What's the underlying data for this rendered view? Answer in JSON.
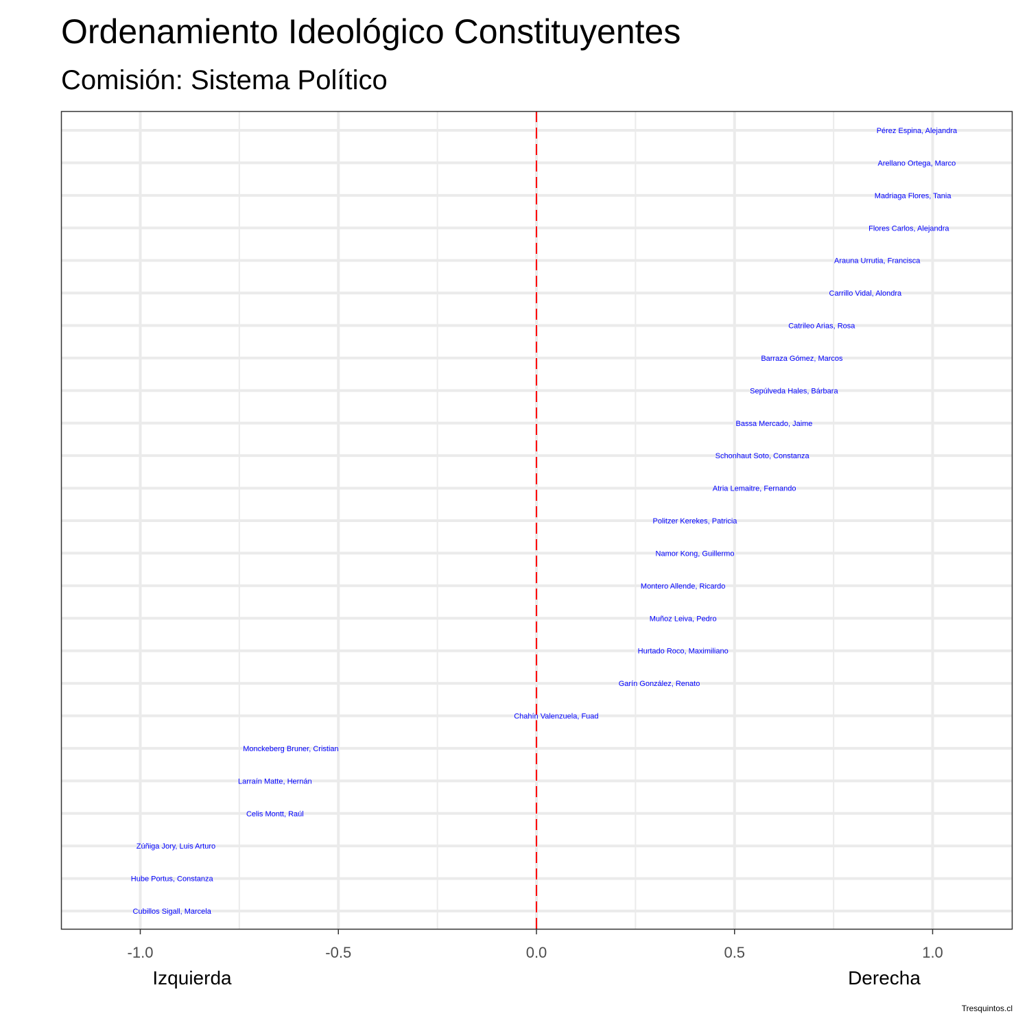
{
  "chart_data": {
    "type": "scatter",
    "title": "Ordenamiento Ideológico Constituyentes",
    "subtitle": "Comisión: Sistema Político",
    "xlabel_left": "Izquierda",
    "xlabel_right": "Derecha",
    "caption": "Tresquintos.cl",
    "xlim": [
      -1.2,
      1.2
    ],
    "x_ticks": [
      -1.0,
      -0.5,
      0.0,
      0.5,
      1.0
    ],
    "x_tick_labels": [
      "-1.0",
      "-0.5",
      "0.0",
      "0.5",
      "1.0"
    ],
    "reference_line": 0.0,
    "grid": true,
    "label_color": "#0000ff",
    "reference_color": "#ff0000",
    "points": [
      {
        "label": "Pérez Espina, Alejandra",
        "x": 0.96
      },
      {
        "label": "Arellano Ortega, Marco",
        "x": 0.96
      },
      {
        "label": "Madriaga Flores, Tania",
        "x": 0.95
      },
      {
        "label": "Flores Carlos, Alejandra",
        "x": 0.94
      },
      {
        "label": "Arauna Urrutia, Francisca",
        "x": 0.86
      },
      {
        "label": "Carrillo Vidal, Alondra",
        "x": 0.83
      },
      {
        "label": "Catrileo Arias, Rosa",
        "x": 0.72
      },
      {
        "label": "Barraza Gómez, Marcos",
        "x": 0.67
      },
      {
        "label": "Sepúlveda Hales, Bárbara",
        "x": 0.65
      },
      {
        "label": "Bassa Mercado, Jaime",
        "x": 0.6
      },
      {
        "label": "Schonhaut Soto, Constanza",
        "x": 0.57
      },
      {
        "label": "Atria Lemaitre, Fernando",
        "x": 0.55
      },
      {
        "label": "Politzer Kerekes, Patricia",
        "x": 0.4
      },
      {
        "label": "Namor Kong, Guillermo",
        "x": 0.4
      },
      {
        "label": "Montero Allende, Ricardo",
        "x": 0.37
      },
      {
        "label": "Muñoz Leiva, Pedro",
        "x": 0.37
      },
      {
        "label": "Hurtado Roco, Maximiliano",
        "x": 0.37
      },
      {
        "label": "Garín González, Renato",
        "x": 0.31
      },
      {
        "label": "Chahín Valenzuela, Fuad",
        "x": 0.05
      },
      {
        "label": "Monckeberg Bruner, Cristian",
        "x": -0.62
      },
      {
        "label": "Larraín Matte, Hernán",
        "x": -0.66
      },
      {
        "label": "Celis Montt, Raúl",
        "x": -0.66
      },
      {
        "label": "Zúñiga Jory, Luis Arturo",
        "x": -0.91
      },
      {
        "label": "Hube Portus, Constanza",
        "x": -0.92
      },
      {
        "label": "Cubillos Sigall, Marcela",
        "x": -0.92
      }
    ]
  }
}
